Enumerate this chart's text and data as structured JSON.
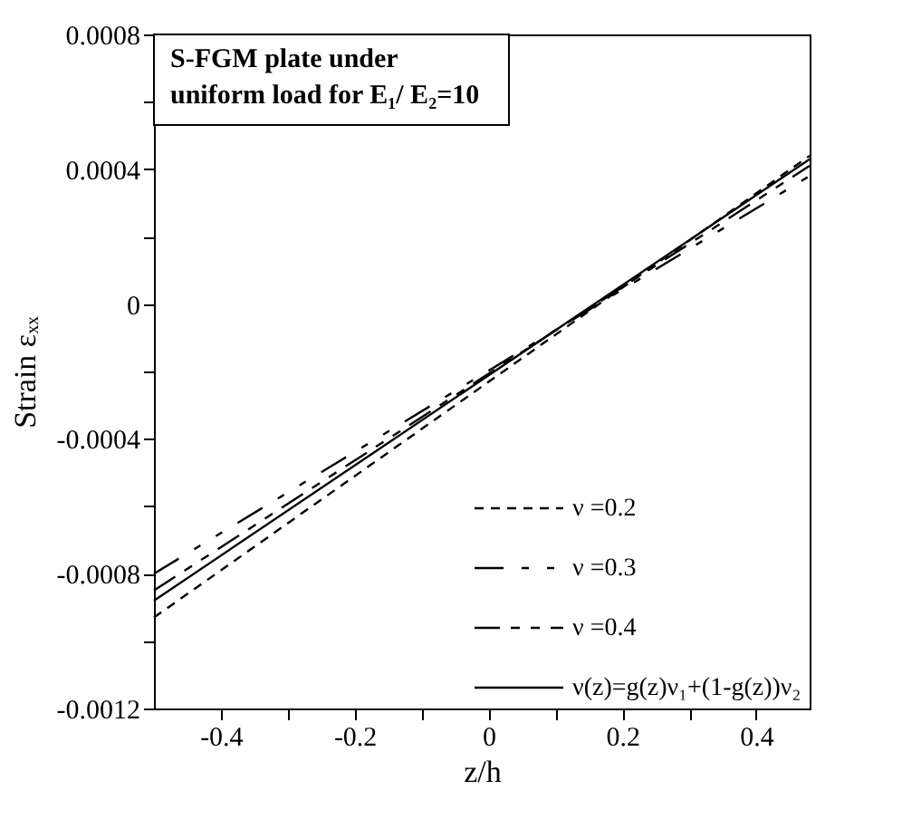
{
  "chart_data": {
    "type": "line",
    "title": "S-FGM plate under uniform load for E₁/ E₂=10",
    "xlabel": "z/h",
    "ylabel": "Strain εₓₓ",
    "x": [
      -0.5,
      0.48
    ],
    "series": [
      {
        "name": "ν =0.2",
        "color": "#000000",
        "line_style": "dashed",
        "values": [
          -0.00093,
          0.00044
        ]
      },
      {
        "name": "ν =0.3",
        "color": "#000000",
        "line_style": "dashed",
        "values": [
          -0.0008,
          0.00038
        ]
      },
      {
        "name": "ν =0.4",
        "color": "#000000",
        "line_style": "dashed",
        "values": [
          -0.00085,
          0.00041
        ]
      },
      {
        "name": "ν(z)=g(z)ν₁+(1-g(z))ν₂",
        "color": "#000000",
        "line_style": "solid",
        "values": [
          -0.00088,
          0.00043
        ]
      }
    ],
    "xlim": [
      -0.5,
      0.48
    ],
    "xticks": [
      -0.4,
      {
        "value": -0.3,
        "label": null
      },
      -0.2,
      {
        "value": -0.1,
        "label": null
      },
      0,
      {
        "value": 0.1,
        "label": null
      },
      0.2,
      {
        "value": 0.3,
        "label": null
      },
      0.4
    ],
    "ylim": [
      -0.0012,
      0.0008
    ],
    "yticks": [
      -0.0012,
      {
        "value": -0.001,
        "label": null
      },
      -0.0008,
      {
        "value": -0.0006,
        "label": null
      },
      -0.0004,
      {
        "value": -0.0002,
        "label": null
      },
      0,
      {
        "value": 0.0002,
        "label": null
      },
      0.0004,
      {
        "value": 0.0006,
        "label": null
      },
      0.0008
    ],
    "grid": false,
    "legend": "bottom right",
    "marker": "none"
  }
}
